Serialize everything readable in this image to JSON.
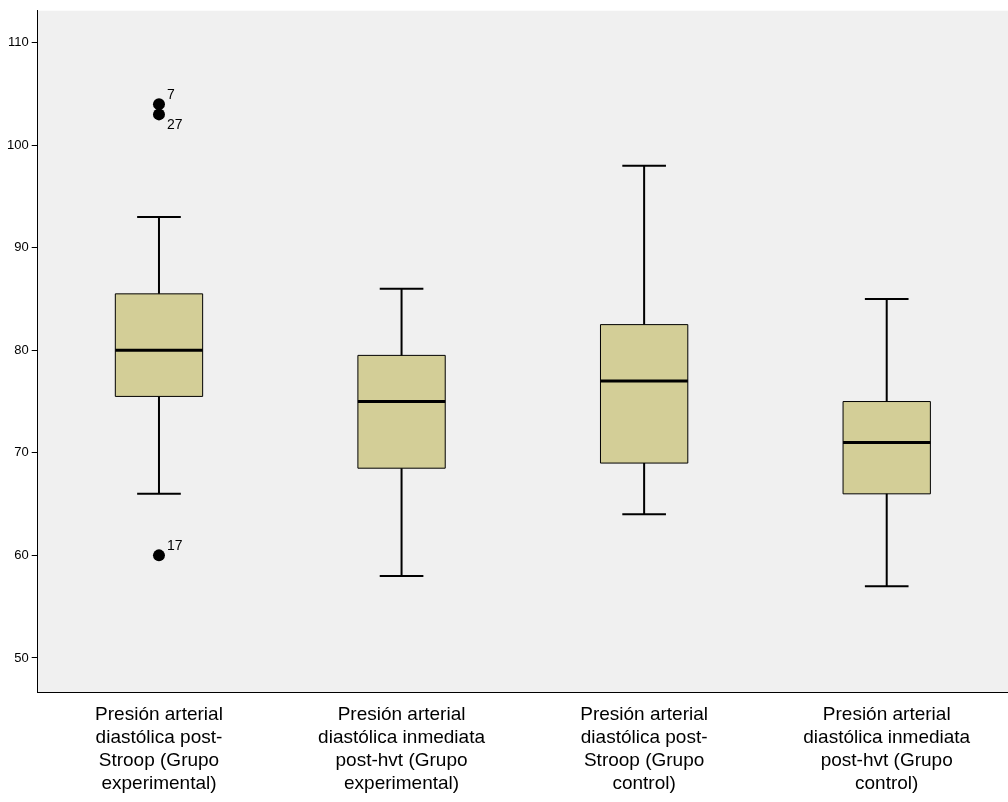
{
  "chart_data": {
    "type": "box",
    "categories": [
      "Presión arterial diastólica post-Stroop (Grupo experimental)",
      "Presión arterial diastólica inmediata post-hvt (Grupo experimental)",
      "Presión arterial diastólica post-Stroop (Grupo control)",
      "Presión arterial diastólica inmediata post-hvt (Grupo control)"
    ],
    "color": "#d3ce97",
    "boxes": [
      {
        "low": 66,
        "q1": 75.5,
        "median": 80,
        "q3": 85.5,
        "high": 93,
        "outliers": [
          104,
          103,
          60
        ]
      },
      {
        "low": 58,
        "q1": 68.5,
        "median": 75,
        "q3": 79.5,
        "high": 86
      },
      {
        "low": 64,
        "q1": 69,
        "median": 77,
        "q3": 82.5,
        "high": 98
      },
      {
        "low": 57,
        "q1": 66,
        "median": 71,
        "q3": 75,
        "high": 85
      }
    ],
    "ylim": [
      46.6,
      113.1
    ],
    "yticks": [
      50,
      60,
      70,
      80,
      90,
      100,
      110
    ],
    "grid": false,
    "legend": false,
    "annotations": [
      "7",
      "27",
      "17"
    ]
  }
}
